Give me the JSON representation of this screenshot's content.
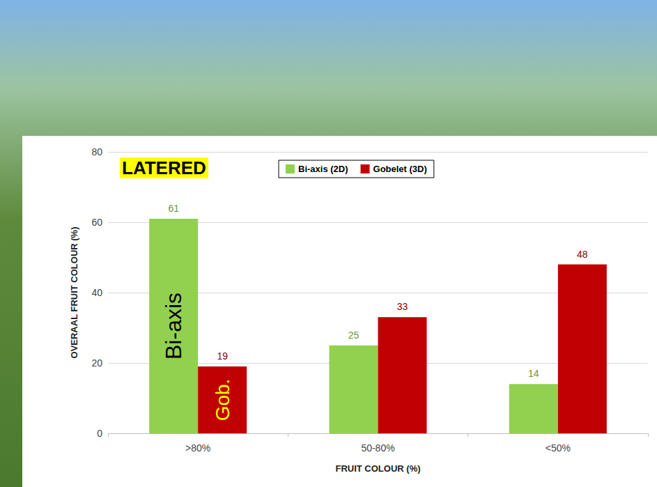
{
  "chart_data": {
    "type": "bar",
    "title": "LATERED",
    "categories": [
      ">80%",
      "50-80%",
      "<50%"
    ],
    "series": [
      {
        "name": "Bi-axis (2D)",
        "color": "#92d050",
        "values": [
          61,
          25,
          14
        ]
      },
      {
        "name": "Gobelet (3D)",
        "color": "#c00000",
        "values": [
          19,
          33,
          48
        ]
      }
    ],
    "x_label": "FRUIT COLOUR (%)",
    "y_label": "OVERAAL FRUIT COLOUR (%)",
    "ylim": [
      0,
      80
    ],
    "yticks": [
      0,
      20,
      40,
      60,
      80
    ],
    "grid": true,
    "legend": "top",
    "data_labels": true,
    "annotations": [
      {
        "text": "Bi-axis",
        "series": "Bi-axis (2D)",
        "category": ">80%"
      },
      {
        "text": "Gob.",
        "series": "Gobelet (3D)",
        "category": ">80%"
      }
    ]
  }
}
